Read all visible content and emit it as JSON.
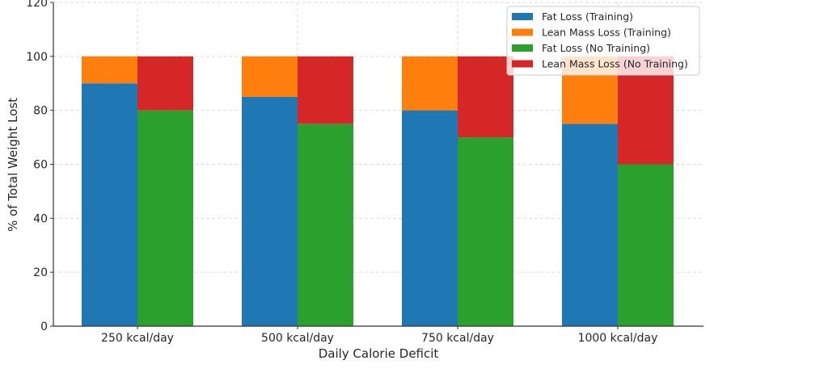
{
  "chart_data": {
    "type": "bar",
    "stacked": true,
    "grouped": true,
    "title": "",
    "xlabel": "Daily Calorie Deficit",
    "ylabel": "% of Total Weight Lost",
    "categories": [
      "250 kcal/day",
      "500 kcal/day",
      "750 kcal/day",
      "1000 kcal/day"
    ],
    "ylim": [
      0,
      120
    ],
    "yticks": [
      0,
      20,
      40,
      60,
      80,
      100,
      120
    ],
    "grid": true,
    "legend_placement": "top-right",
    "groups": [
      {
        "series": [
          {
            "name": "Fat Loss (Training)",
            "color": "#1f77b4",
            "values": [
              90,
              85,
              80,
              75
            ]
          },
          {
            "name": "Lean Mass Loss (Training)",
            "color": "#ff7f0e",
            "values": [
              10,
              15,
              20,
              25
            ]
          }
        ]
      },
      {
        "series": [
          {
            "name": "Fat Loss (No Training)",
            "color": "#2ca02c",
            "values": [
              80,
              75,
              70,
              60
            ]
          },
          {
            "name": "Lean Mass Loss (No Training)",
            "color": "#d62728",
            "values": [
              20,
              25,
              30,
              40
            ]
          }
        ]
      }
    ]
  }
}
